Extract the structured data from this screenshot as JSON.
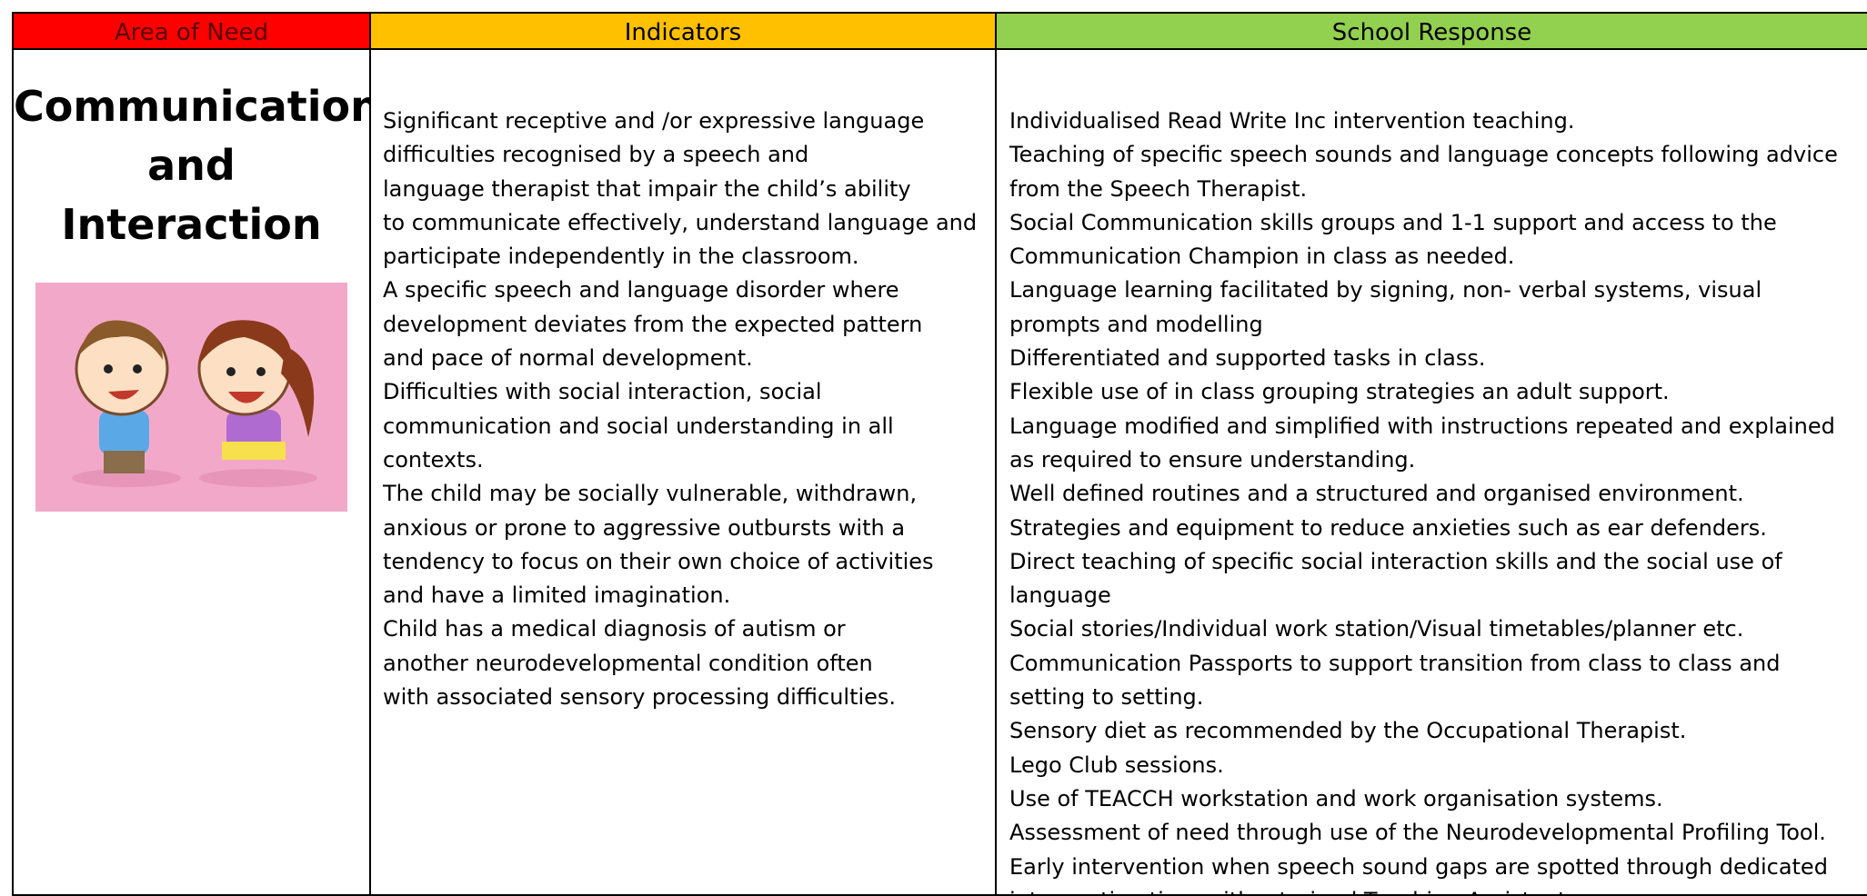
{
  "table": {
    "headers": [
      "Area of Need",
      "Indicators",
      "School Response"
    ],
    "area_title": [
      "Communication",
      "and",
      "Interaction"
    ],
    "indicators": [
      "Significant receptive and /or expressive language",
      "difficulties recognised by a speech and",
      "language therapist that impair the child’s ability",
      "to communicate effectively, understand language and",
      "participate independently in the classroom.",
      "A specific speech and language disorder where",
      "development deviates from the expected pattern",
      "and pace of normal development.",
      "Difficulties with social interaction, social",
      "communication and social understanding in all",
      "contexts.",
      "The child may be socially vulnerable, withdrawn,",
      "anxious or prone to aggressive outbursts with a",
      "tendency to focus on their own choice of activities",
      "and have a limited imagination.",
      "Child has a medical diagnosis of autism or",
      "another neurodevelopmental condition often",
      "with associated sensory processing difficulties."
    ],
    "responses": [
      "Individualised Read Write Inc intervention teaching.",
      "Teaching of specific speech sounds and language concepts following advice",
      "from the Speech Therapist.",
      "Social Communication skills groups and 1-1 support and access to the",
      "Communication Champion in class as needed.",
      "Language learning facilitated by signing, non- verbal systems, visual",
      "prompts and modelling",
      "Differentiated and supported tasks in class.",
      "Flexible use of in class grouping strategies an adult support.",
      "Language modified and simplified with instructions repeated and explained",
      "as required to ensure understanding.",
      "Well defined routines and a structured and organised environment.",
      "Strategies and equipment to reduce anxieties such as ear defenders.",
      "Direct teaching of specific social interaction skills and the social use of",
      "language",
      "Social stories/Individual work station/Visual timetables/planner etc.",
      "Communication Passports to support transition from class to class and",
      "setting to setting.",
      "Sensory diet as recommended by the Occupational Therapist.",
      "Lego Club sessions.",
      "Use of TEACCH workstation and work organisation systems.",
      "Assessment of need through use of the Neurodevelopmental Profiling Tool.",
      "Early intervention when speech sound gaps are spotted through dedicated",
      "intervention time with a trained Teaching Assistant."
    ]
  }
}
